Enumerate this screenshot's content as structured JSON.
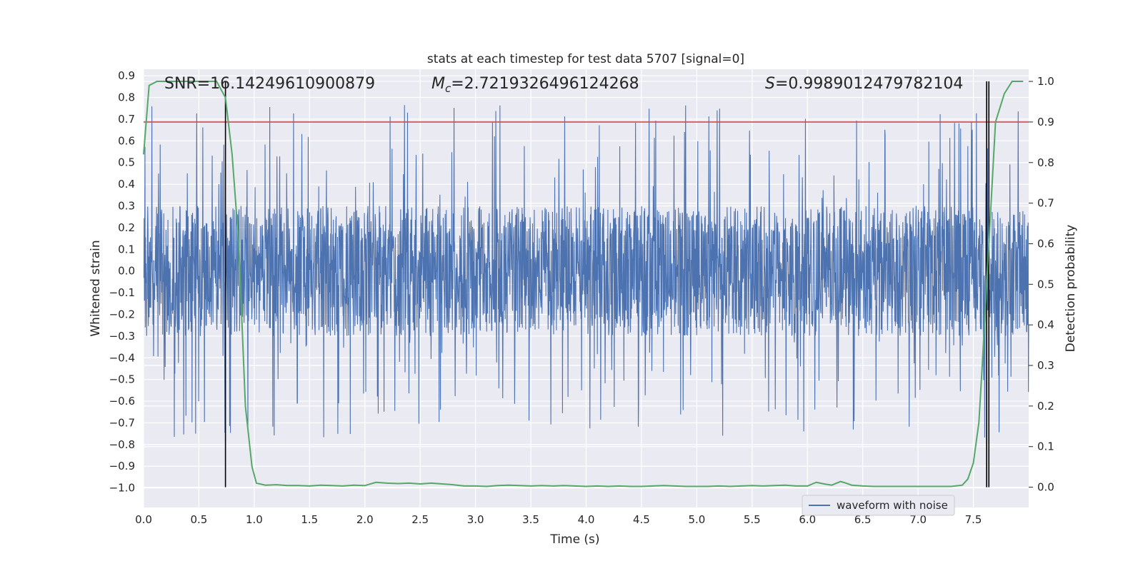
{
  "chart_data": {
    "type": "line",
    "title": "stats at each timestep for test data 5707 [signal=0]",
    "xlabel": "Time (s)",
    "ylabel_left": "Whitened strain",
    "ylabel_right": "Detection probability",
    "xlim": [
      0.0,
      8.0
    ],
    "ylim_left": [
      -1.09,
      0.93
    ],
    "ylim_right": [
      -0.05,
      1.03
    ],
    "x_ticks": [
      "0.0",
      "0.5",
      "1.0",
      "1.5",
      "2.0",
      "2.5",
      "3.0",
      "3.5",
      "4.0",
      "4.5",
      "5.0",
      "5.5",
      "6.0",
      "6.5",
      "7.0",
      "7.5"
    ],
    "y_left_ticks": [
      "0.9",
      "0.8",
      "0.7",
      "0.6",
      "0.5",
      "0.4",
      "0.3",
      "0.2",
      "0.1",
      "0.0",
      "−0.1",
      "−0.2",
      "−0.3",
      "−0.4",
      "−0.5",
      "−0.6",
      "−0.7",
      "−0.8",
      "−0.9",
      "−1.0"
    ],
    "y_right_ticks": [
      "1.0",
      "0.9",
      "0.8",
      "0.7",
      "0.6",
      "0.5",
      "0.4",
      "0.3",
      "0.2",
      "0.1",
      "0.0"
    ],
    "grid": true,
    "legend": {
      "position": "lower-right",
      "entries": [
        "waveform with noise"
      ]
    },
    "annotations": {
      "snr": "SNR=16.14249610900879",
      "mc_symbol": "M",
      "mc_sub": "c",
      "mc_value": "=2.7219326496124268",
      "s_symbol": "S",
      "s_value": "=0.9989012479782104"
    },
    "threshold": {
      "y_right": 0.9,
      "color": "#c44e52"
    },
    "vertical_lines_x": [
      0.74,
      7.62,
      7.64
    ],
    "waveform": {
      "name": "waveform with noise",
      "color": "#4c72b0",
      "core_amplitude": 0.3,
      "peak_amplitude": 0.77,
      "min_value": -0.91
    },
    "detection_probability": {
      "color": "#55a868",
      "x": [
        0.0,
        0.05,
        0.12,
        0.2,
        0.3,
        0.4,
        0.5,
        0.6,
        0.66,
        0.74,
        0.8,
        0.86,
        0.92,
        0.98,
        1.02,
        1.1,
        1.2,
        1.3,
        1.4,
        1.5,
        1.6,
        1.7,
        1.8,
        1.9,
        2.0,
        2.1,
        2.2,
        2.3,
        2.4,
        2.5,
        2.6,
        2.7,
        2.8,
        2.9,
        3.0,
        3.1,
        3.2,
        3.3,
        3.4,
        3.5,
        3.6,
        3.7,
        3.8,
        3.9,
        4.0,
        4.1,
        4.2,
        4.3,
        4.4,
        4.5,
        4.6,
        4.7,
        4.8,
        4.9,
        5.0,
        5.1,
        5.2,
        5.3,
        5.4,
        5.5,
        5.6,
        5.7,
        5.8,
        5.9,
        6.0,
        6.08,
        6.15,
        6.22,
        6.3,
        6.35,
        6.4,
        6.5,
        6.6,
        6.7,
        6.8,
        6.9,
        7.0,
        7.1,
        7.2,
        7.3,
        7.4,
        7.45,
        7.5,
        7.55,
        7.58,
        7.62,
        7.66,
        7.7,
        7.78,
        7.85,
        7.9,
        7.95
      ],
      "y": [
        0.82,
        0.99,
        1.0,
        1.0,
        1.0,
        1.0,
        1.0,
        1.0,
        1.0,
        0.96,
        0.82,
        0.6,
        0.2,
        0.05,
        0.01,
        0.005,
        0.006,
        0.004,
        0.004,
        0.003,
        0.005,
        0.004,
        0.003,
        0.005,
        0.004,
        0.012,
        0.01,
        0.009,
        0.01,
        0.008,
        0.01,
        0.008,
        0.006,
        0.003,
        0.003,
        0.002,
        0.004,
        0.005,
        0.004,
        0.003,
        0.004,
        0.003,
        0.004,
        0.003,
        0.002,
        0.003,
        0.002,
        0.003,
        0.002,
        0.002,
        0.003,
        0.004,
        0.003,
        0.002,
        0.002,
        0.002,
        0.003,
        0.002,
        0.003,
        0.004,
        0.003,
        0.004,
        0.005,
        0.003,
        0.003,
        0.012,
        0.008,
        0.005,
        0.014,
        0.01,
        0.005,
        0.003,
        0.002,
        0.002,
        0.002,
        0.002,
        0.002,
        0.002,
        0.002,
        0.002,
        0.005,
        0.02,
        0.06,
        0.16,
        0.3,
        0.5,
        0.7,
        0.9,
        0.97,
        1.0,
        1.0,
        1.0
      ]
    }
  }
}
